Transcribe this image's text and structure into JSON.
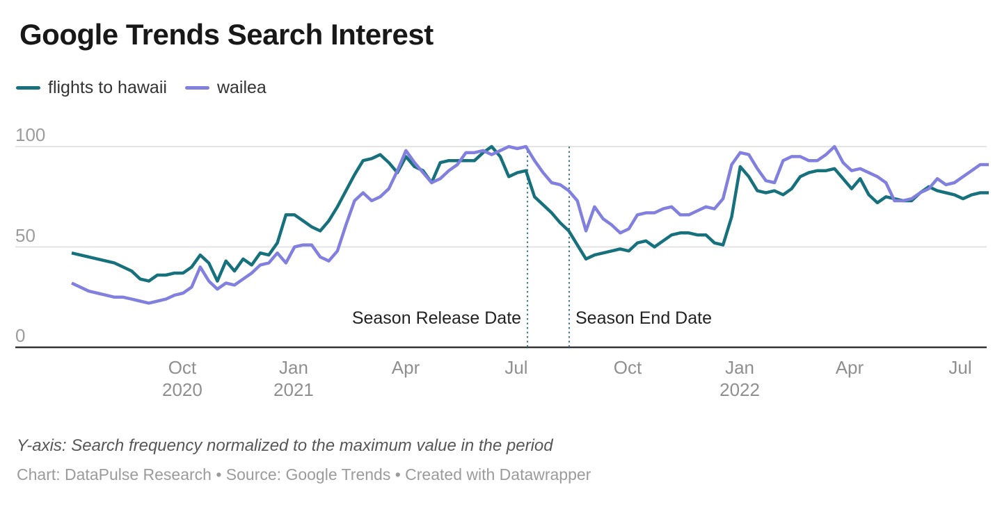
{
  "title": "Google Trends Search Interest",
  "legend": {
    "items": [
      {
        "label": "flights to hawaii",
        "color": "#16717c"
      },
      {
        "label": "wailea",
        "color": "#8280df"
      }
    ]
  },
  "footer": {
    "axis_note": "Y-axis: Search frequency normalized to the maximum value in the period",
    "credit": "Chart: DataPulse Research • Source: Google Trends • Created with Datawrapper"
  },
  "chart_data": {
    "type": "line",
    "title": "Google Trends Search Interest",
    "x_unit": "weekly samples, Jul 2020 – Jul 2022",
    "ylim": [
      0,
      100
    ],
    "y_ticks": [
      0,
      50,
      100
    ],
    "grid": "horizontal",
    "legend_position": "top-left",
    "x_ticks": [
      {
        "label": "Oct",
        "year": "2020",
        "pos": 0.1206
      },
      {
        "label": "Jan",
        "year": "2021",
        "pos": 0.242
      },
      {
        "label": "Apr",
        "year": "",
        "pos": 0.3642
      },
      {
        "label": "Jul",
        "year": "",
        "pos": 0.4848
      },
      {
        "label": "Oct",
        "year": "",
        "pos": 0.6062
      },
      {
        "label": "Jan",
        "year": "2022",
        "pos": 0.7284
      },
      {
        "label": "Apr",
        "year": "",
        "pos": 0.8482
      },
      {
        "label": "Jul",
        "year": "",
        "pos": 0.9689
      }
    ],
    "annotations": [
      {
        "label": "Season Release Date",
        "pos": 0.497,
        "label_side": "left"
      },
      {
        "label": "Season End Date",
        "pos": 0.5425,
        "label_side": "right"
      }
    ],
    "annotation_line_color": "#3e7d93",
    "series": [
      {
        "name": "flights to hawaii",
        "color": "#16717c",
        "values": [
          47,
          46,
          45,
          44,
          43,
          42,
          40,
          38,
          34,
          33,
          36,
          36,
          37,
          37,
          40,
          46,
          42,
          33,
          43,
          38,
          44,
          41,
          47,
          46,
          52,
          66,
          66,
          63,
          60,
          58,
          63,
          70,
          78,
          86,
          93,
          94,
          96,
          92,
          87,
          95,
          90,
          88,
          82,
          92,
          93,
          93,
          93,
          93,
          97,
          100,
          95,
          85,
          87,
          88,
          75,
          71,
          67,
          62,
          58,
          51,
          44,
          46,
          47,
          48,
          49,
          48,
          52,
          53,
          50,
          53,
          56,
          57,
          57,
          56,
          56,
          52,
          51,
          65,
          90,
          85,
          78,
          77,
          78,
          76,
          79,
          85,
          87,
          88,
          88,
          89,
          84,
          79,
          84,
          76,
          72,
          75,
          74,
          73,
          73,
          77,
          80,
          78,
          77,
          76,
          74,
          76,
          77,
          77
        ]
      },
      {
        "name": "wailea",
        "color": "#8280df",
        "values": [
          32,
          30,
          28,
          27,
          26,
          25,
          25,
          24,
          23,
          22,
          23,
          24,
          26,
          27,
          30,
          40,
          33,
          29,
          32,
          31,
          34,
          37,
          41,
          42,
          47,
          42,
          50,
          51,
          51,
          45,
          43,
          48,
          61,
          73,
          77,
          73,
          75,
          79,
          88,
          98,
          92,
          87,
          82,
          84,
          88,
          91,
          97,
          97,
          98,
          96,
          98,
          100,
          99,
          100,
          93,
          87,
          82,
          81,
          78,
          73,
          58,
          70,
          64,
          61,
          57,
          59,
          66,
          67,
          67,
          69,
          70,
          66,
          66,
          68,
          70,
          69,
          74,
          91,
          97,
          96,
          89,
          83,
          82,
          93,
          95,
          95,
          93,
          93,
          96,
          100,
          92,
          88,
          89,
          87,
          85,
          82,
          73,
          73,
          74,
          77,
          79,
          84,
          81,
          82,
          85,
          88,
          91,
          91
        ]
      }
    ]
  }
}
